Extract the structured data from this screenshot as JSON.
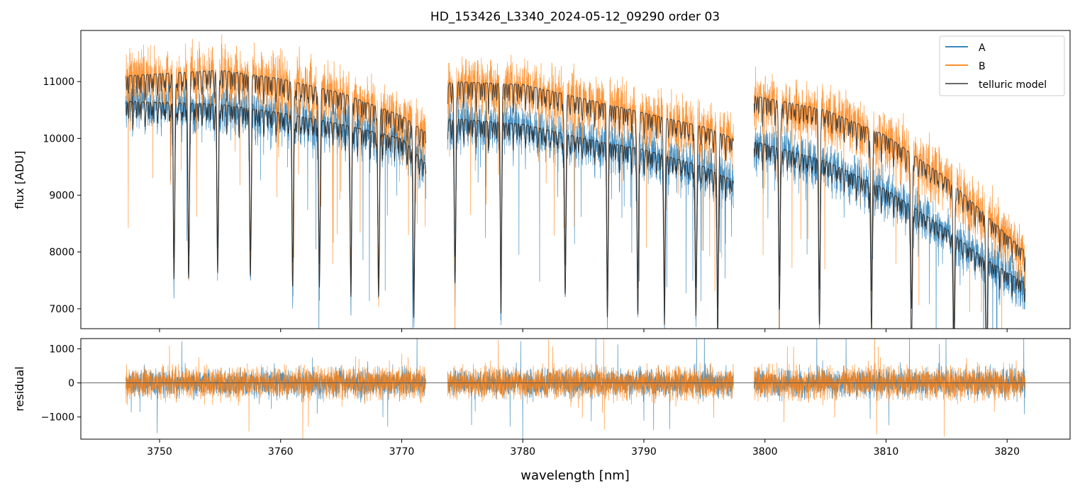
{
  "figure": {
    "title": "HD_153426_L3340_2024-05-12_09290  order 03",
    "xlabel": "wavelength [nm]"
  },
  "chart_data": [
    {
      "type": "line",
      "panel": "top",
      "ylabel": "flux [ADU]",
      "xlim": [
        3743.5,
        3825.2
      ],
      "ylim": [
        6650,
        11900
      ],
      "x_ticks": [
        3750,
        3760,
        3770,
        3780,
        3790,
        3800,
        3810,
        3820
      ],
      "y_ticks": [
        7000,
        8000,
        9000,
        10000,
        11000
      ],
      "y_tick_labels": [
        "7000",
        "8000",
        "9000",
        "10000",
        "11000"
      ],
      "grid": false,
      "legend": {
        "position": "top-right",
        "entries": [
          "A",
          "B",
          "telluric model"
        ]
      },
      "segments": [
        [
          3747.2,
          3772.0
        ],
        [
          3773.8,
          3797.4
        ],
        [
          3799.1,
          3821.5
        ]
      ],
      "series": [
        {
          "name": "A",
          "color": "#1f77b4",
          "continuum_points": [
            [
              3747.2,
              10650
            ],
            [
              3755,
              10600
            ],
            [
              3760,
              10450
            ],
            [
              3765,
              10250
            ],
            [
              3770,
              10000
            ],
            [
              3772,
              9550
            ],
            [
              3774,
              10350
            ],
            [
              3780,
              10250
            ],
            [
              3785,
              10000
            ],
            [
              3790,
              9800
            ],
            [
              3795,
              9500
            ],
            [
              3797.4,
              9250
            ],
            [
              3799.1,
              9950
            ],
            [
              3805,
              9600
            ],
            [
              3810,
              9100
            ],
            [
              3815,
              8400
            ],
            [
              3818,
              7900
            ],
            [
              3821.5,
              7450
            ]
          ],
          "noise_amplitude": 650,
          "absorption_lines": [
            3751.2,
            3752.4,
            3754.8,
            3757.5,
            3761.0,
            3763.2,
            3765.8,
            3768.1,
            3771.0,
            3774.4,
            3778.2,
            3783.5,
            3787.0,
            3789.5,
            3791.7,
            3794.3,
            3796.1,
            3801.2,
            3804.5,
            3808.8,
            3812.1,
            3815.6,
            3818.3
          ]
        },
        {
          "name": "B",
          "color": "#ff7f0e",
          "continuum_points": [
            [
              3747.2,
              11100
            ],
            [
              3755,
              11200
            ],
            [
              3760,
              11050
            ],
            [
              3765,
              10800
            ],
            [
              3770,
              10400
            ],
            [
              3772,
              10100
            ],
            [
              3774,
              11000
            ],
            [
              3780,
              10950
            ],
            [
              3785,
              10700
            ],
            [
              3790,
              10450
            ],
            [
              3795,
              10200
            ],
            [
              3797.4,
              10000
            ],
            [
              3799.1,
              10750
            ],
            [
              3805,
              10500
            ],
            [
              3810,
              10050
            ],
            [
              3815,
              9300
            ],
            [
              3818,
              8700
            ],
            [
              3821.5,
              8000
            ]
          ],
          "noise_amplitude": 800,
          "absorption_lines": [
            3751.2,
            3752.4,
            3754.8,
            3757.5,
            3761.0,
            3763.2,
            3765.8,
            3768.1,
            3771.0,
            3774.4,
            3778.2,
            3783.5,
            3787.0,
            3789.5,
            3791.7,
            3794.3,
            3796.1,
            3801.2,
            3804.5,
            3808.8,
            3812.1,
            3815.6,
            3818.3
          ]
        },
        {
          "name": "telluric model",
          "color": "#555555",
          "description_points_ref": "smooth models following the A and B continua with absorption dips"
        }
      ]
    },
    {
      "type": "line",
      "panel": "bottom",
      "ylabel": "residual",
      "xlim": [
        3743.5,
        3825.2
      ],
      "ylim": [
        -1650,
        1300
      ],
      "x_ticks": [
        3750,
        3760,
        3770,
        3780,
        3790,
        3800,
        3810,
        3820
      ],
      "x_tick_labels": [
        "3750",
        "3760",
        "3770",
        "3780",
        "3790",
        "3800",
        "3810",
        "3820"
      ],
      "y_ticks": [
        -1000,
        0,
        1000
      ],
      "y_tick_labels": [
        "−1000",
        "0",
        "1000"
      ],
      "reference_line_y": 0,
      "grid": false,
      "series": [
        {
          "name": "A",
          "color": "#1f77b4",
          "noise_amplitude": 380
        },
        {
          "name": "B",
          "color": "#ff7f0e",
          "noise_amplitude": 450
        }
      ]
    }
  ]
}
